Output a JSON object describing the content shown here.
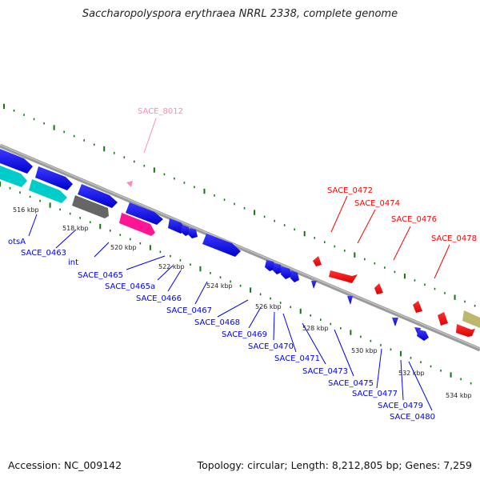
{
  "title": "Saccharopolyspora erythraea NRRL 2338, complete genome",
  "footer": {
    "accession": "Accession: NC_009142",
    "topology": "Topology: circular; Length: 8,212,805 bp; Genes: 7,259"
  },
  "colors": {
    "blue": "#0000ee",
    "red": "#ff0000",
    "cyan": "#00cccc",
    "gray": "#666666",
    "magenta": "#ff1493",
    "pink": "#ff88bb",
    "tan": "#bdb76b",
    "green_ticks": "#117711",
    "backbone": "#888888"
  },
  "ticks": [
    "516 kbp",
    "518 kbp",
    "520 kbp",
    "522 kbp",
    "524 kbp",
    "526 kbp",
    "528 kbp",
    "530 kbp",
    "532 kbp",
    "534 kbp"
  ],
  "labels": {
    "top_pink": "SACE_8012",
    "top_red": [
      "SACE_0472",
      "SACE_0474",
      "SACE_0476",
      "SACE_0478"
    ],
    "bottom_blue": [
      "otsA",
      "SACE_0463",
      "int",
      "SACE_0465",
      "SACE_0465a",
      "SACE_0466",
      "SACE_0467",
      "SACE_0468",
      "SACE_0469",
      "SACE_0470",
      "SACE_0471",
      "SACE_0473",
      "SACE_0475",
      "SACE_0477",
      "SACE_0479",
      "SACE_0480"
    ]
  }
}
